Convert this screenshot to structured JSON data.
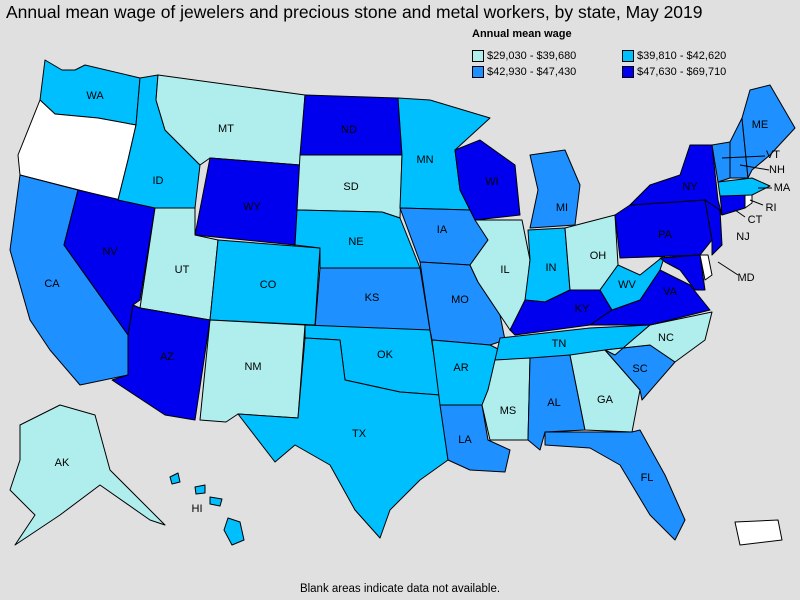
{
  "title": "Annual mean wage of jewelers and precious stone and metal workers, by state, May 2019",
  "legend": {
    "title": "Annual mean wage",
    "items": [
      {
        "label": "$29,030 - $39,680",
        "color": "#b0eeee"
      },
      {
        "label": "$39,810 - $42,620",
        "color": "#00bfff"
      },
      {
        "label": "$42,930 - $47,430",
        "color": "#1e90ff"
      },
      {
        "label": "$47,630 - $69,710",
        "color": "#0000ee"
      }
    ]
  },
  "note": "Blank areas indicate data not available.",
  "colors": {
    "no_data": "#ffffff"
  },
  "states": {
    "WA": {
      "label": "WA",
      "bin": 1
    },
    "OR": {
      "label": "",
      "bin": -1
    },
    "CA": {
      "label": "CA",
      "bin": 2
    },
    "NV": {
      "label": "NV",
      "bin": 3
    },
    "ID": {
      "label": "ID",
      "bin": 1
    },
    "MT": {
      "label": "MT",
      "bin": 0
    },
    "WY": {
      "label": "WY",
      "bin": 3
    },
    "UT": {
      "label": "UT",
      "bin": 0
    },
    "AZ": {
      "label": "AZ",
      "bin": 3
    },
    "CO": {
      "label": "CO",
      "bin": 1
    },
    "NM": {
      "label": "NM",
      "bin": 0
    },
    "ND": {
      "label": "ND",
      "bin": 3
    },
    "SD": {
      "label": "SD",
      "bin": 0
    },
    "NE": {
      "label": "NE",
      "bin": 1
    },
    "KS": {
      "label": "KS",
      "bin": 2
    },
    "OK": {
      "label": "OK",
      "bin": 1
    },
    "TX": {
      "label": "TX",
      "bin": 1
    },
    "MN": {
      "label": "MN",
      "bin": 1
    },
    "IA": {
      "label": "IA",
      "bin": 2
    },
    "MO": {
      "label": "MO",
      "bin": 2
    },
    "AR": {
      "label": "AR",
      "bin": 1
    },
    "LA": {
      "label": "LA",
      "bin": 2
    },
    "WI": {
      "label": "WI",
      "bin": 3
    },
    "IL": {
      "label": "IL",
      "bin": 0
    },
    "MI": {
      "label": "MI",
      "bin": 2
    },
    "IN": {
      "label": "IN",
      "bin": 1
    },
    "OH": {
      "label": "OH",
      "bin": 0
    },
    "KY": {
      "label": "KY",
      "bin": 3
    },
    "TN": {
      "label": "TN",
      "bin": 1
    },
    "MS": {
      "label": "MS",
      "bin": 0
    },
    "AL": {
      "label": "AL",
      "bin": 2
    },
    "GA": {
      "label": "GA",
      "bin": 0
    },
    "FL": {
      "label": "FL",
      "bin": 2
    },
    "SC": {
      "label": "SC",
      "bin": 2
    },
    "NC": {
      "label": "NC",
      "bin": 0
    },
    "VA": {
      "label": "VA",
      "bin": 3
    },
    "WV": {
      "label": "WV",
      "bin": 1
    },
    "PA": {
      "label": "PA",
      "bin": 3
    },
    "NY": {
      "label": "NY",
      "bin": 3
    },
    "NJ": {
      "label": "NJ",
      "bin": 3
    },
    "MD": {
      "label": "MD",
      "bin": 3
    },
    "DE": {
      "label": "",
      "bin": -1
    },
    "CT": {
      "label": "CT",
      "bin": 3
    },
    "RI": {
      "label": "RI",
      "bin": -1
    },
    "MA": {
      "label": "MA",
      "bin": 1
    },
    "VT": {
      "label": "VT",
      "bin": 2
    },
    "NH": {
      "label": "NH",
      "bin": 2
    },
    "ME": {
      "label": "ME",
      "bin": 2
    },
    "AK": {
      "label": "AK",
      "bin": 0
    },
    "HI": {
      "label": "HI",
      "bin": 1
    },
    "PR": {
      "label": "",
      "bin": -1
    }
  }
}
